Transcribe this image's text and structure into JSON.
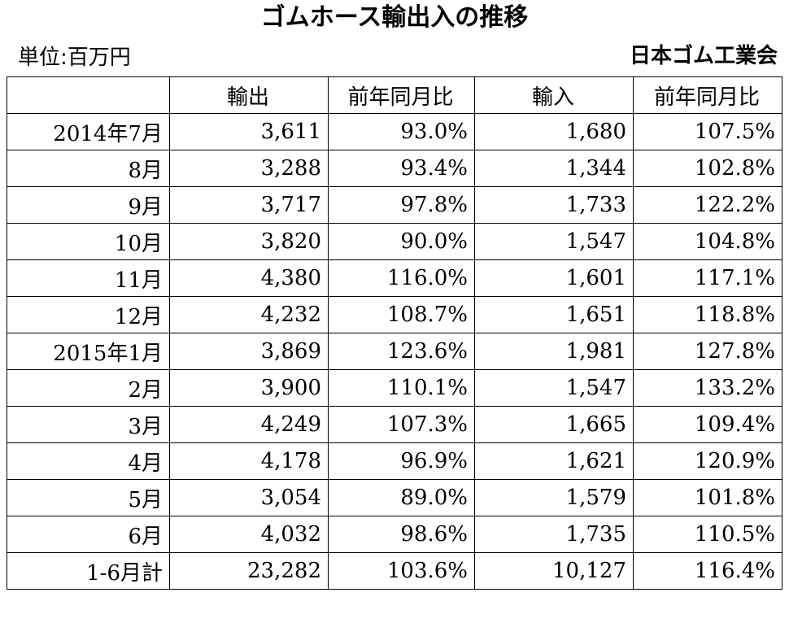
{
  "title": "ゴムホース輸出入の推移",
  "unit": "単位:百万円",
  "source": "日本ゴム工業会",
  "table": {
    "headers": [
      "",
      "輸出",
      "前年同月比",
      "輸入",
      "前年同月比"
    ],
    "rows": [
      [
        "2014年7月",
        "3,611",
        "93.0%",
        "1,680",
        "107.5%"
      ],
      [
        "8月",
        "3,288",
        "93.4%",
        "1,344",
        "102.8%"
      ],
      [
        "9月",
        "3,717",
        "97.8%",
        "1,733",
        "122.2%"
      ],
      [
        "10月",
        "3,820",
        "90.0%",
        "1,547",
        "104.8%"
      ],
      [
        "11月",
        "4,380",
        "116.0%",
        "1,601",
        "117.1%"
      ],
      [
        "12月",
        "4,232",
        "108.7%",
        "1,651",
        "118.8%"
      ],
      [
        "2015年1月",
        "3,869",
        "123.6%",
        "1,981",
        "127.8%"
      ],
      [
        "2月",
        "3,900",
        "110.1%",
        "1,547",
        "133.2%"
      ],
      [
        "3月",
        "4,249",
        "107.3%",
        "1,665",
        "109.4%"
      ],
      [
        "4月",
        "4,178",
        "96.9%",
        "1,621",
        "120.9%"
      ],
      [
        "5月",
        "3,054",
        "89.0%",
        "1,579",
        "101.8%"
      ],
      [
        "6月",
        "4,032",
        "98.6%",
        "1,735",
        "110.5%"
      ],
      [
        "1-6月計",
        "23,282",
        "103.6%",
        "10,127",
        "116.4%"
      ]
    ]
  }
}
